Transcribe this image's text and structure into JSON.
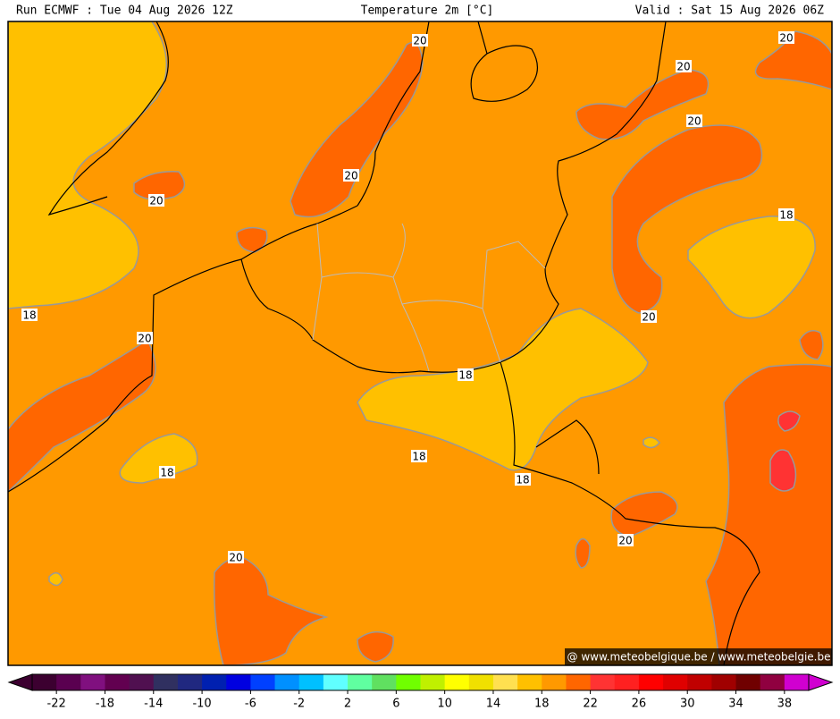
{
  "header": {
    "run": "Run ECMWF : Tue 04 Aug 2026 12Z",
    "title": "Temperature 2m [°C]",
    "valid": "Valid : Sat 15 Aug 2026 06Z"
  },
  "contour_labels": [
    "20",
    "20",
    "20",
    "20",
    "20",
    "20",
    "18",
    "18",
    "20",
    "20",
    "18",
    "18",
    "18",
    "18",
    "20",
    "20"
  ],
  "watermark": "@ www.meteobelgique.be / www.meteobelgie.be",
  "colorbar": {
    "range": [
      -24,
      40
    ],
    "ticks": [
      -22,
      -18,
      -14,
      -10,
      -6,
      -2,
      2,
      6,
      10,
      14,
      18,
      22,
      26,
      30,
      34,
      38
    ],
    "colors": [
      "#3c0030",
      "#5a0050",
      "#80107f",
      "#620050",
      "#501050",
      "#303060",
      "#202880",
      "#0020b0",
      "#0000e0",
      "#0040ff",
      "#0090ff",
      "#00c0ff",
      "#60ffff",
      "#60ffa0",
      "#60e060",
      "#70ff00",
      "#c0f000",
      "#ffff00",
      "#f0e000",
      "#ffe050",
      "#ffc000",
      "#ff9900",
      "#ff6600",
      "#ff3333",
      "#ff2020",
      "#ff0000",
      "#e00000",
      "#c00000",
      "#a00000",
      "#700000",
      "#900040",
      "#d000d0"
    ]
  }
}
